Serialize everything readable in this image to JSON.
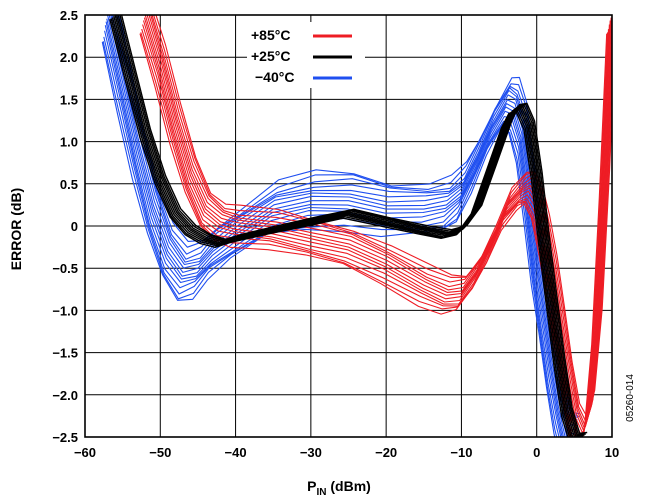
{
  "chart_data": {
    "type": "line",
    "xlabel": "P",
    "xlabel_sub": "IN",
    "xlabel_unit": " (dBm)",
    "ylabel": "ERROR (dB)",
    "xlim": [
      -60,
      10
    ],
    "ylim": [
      -2.5,
      2.5
    ],
    "x_ticks": [
      -60,
      -50,
      -40,
      -30,
      -20,
      -10,
      0,
      10
    ],
    "x_tick_labels": [
      "−60",
      "−50",
      "−40",
      "−30",
      "−20",
      "−10",
      "0",
      "10"
    ],
    "y_ticks": [
      2.5,
      2.0,
      1.5,
      1.0,
      0.5,
      0,
      -0.5,
      -1.0,
      -1.5,
      -2.0,
      -2.5
    ],
    "y_tick_labels": [
      "2.5",
      "2.0",
      "1.5",
      "1.0",
      "0.5",
      "0",
      "−0.5",
      "−1.0",
      "−1.5",
      "−2.0",
      "−2.5"
    ],
    "grid": true,
    "legend_position": "top-center",
    "figure_id": "05260-014",
    "series": [
      {
        "name": "+85°C",
        "color": "#ee1c24",
        "x": [
          -52,
          -50,
          -48,
          -46,
          -44,
          -42,
          -40,
          -35,
          -30,
          -25,
          -20,
          -15,
          -12,
          -10,
          -8,
          -6,
          -4,
          -2,
          -1,
          0,
          1,
          2,
          3,
          4,
          5,
          6,
          7,
          8,
          9,
          10
        ],
        "values": [
          2.5,
          1.9,
          1.2,
          0.6,
          0.2,
          0.05,
          0.0,
          -0.05,
          -0.15,
          -0.25,
          -0.45,
          -0.7,
          -0.82,
          -0.8,
          -0.55,
          -0.2,
          0.2,
          0.4,
          0.45,
          0.3,
          -0.1,
          -0.6,
          -1.2,
          -1.8,
          -2.3,
          -2.5,
          -2.2,
          -1.2,
          0.5,
          2.5
        ]
      },
      {
        "name": "+25°C",
        "color": "#000000",
        "x": [
          -56,
          -54,
          -52,
          -50,
          -48,
          -46,
          -44,
          -42,
          -40,
          -35,
          -30,
          -25,
          -20,
          -15,
          -12,
          -10,
          -8,
          -6,
          -4,
          -3,
          -2,
          -1,
          0,
          1,
          2,
          3,
          4,
          5,
          6
        ],
        "values": [
          2.5,
          1.8,
          1.1,
          0.55,
          0.15,
          -0.05,
          -0.15,
          -0.2,
          -0.15,
          -0.05,
          0.05,
          0.15,
          0.05,
          -0.05,
          -0.1,
          -0.05,
          0.2,
          0.7,
          1.2,
          1.38,
          1.4,
          1.2,
          0.6,
          -0.2,
          -0.9,
          -1.6,
          -2.2,
          -2.5,
          -2.5
        ]
      },
      {
        "name": "−40°C",
        "color": "#1f4ff0",
        "x": [
          -57,
          -55,
          -53,
          -51,
          -49,
          -47,
          -45,
          -43,
          -40,
          -35,
          -30,
          -25,
          -20,
          -15,
          -12,
          -10,
          -8,
          -6,
          -4,
          -3,
          -2,
          -1,
          0,
          1,
          2,
          3,
          4,
          5
        ],
        "values": [
          2.5,
          1.7,
          0.9,
          0.2,
          -0.3,
          -0.55,
          -0.5,
          -0.3,
          -0.1,
          0.2,
          0.3,
          0.3,
          0.2,
          0.2,
          0.25,
          0.4,
          0.75,
          1.15,
          1.45,
          1.4,
          1.1,
          0.4,
          -0.4,
          -1.0,
          -1.6,
          -2.1,
          -2.5,
          -2.5
        ]
      }
    ]
  }
}
